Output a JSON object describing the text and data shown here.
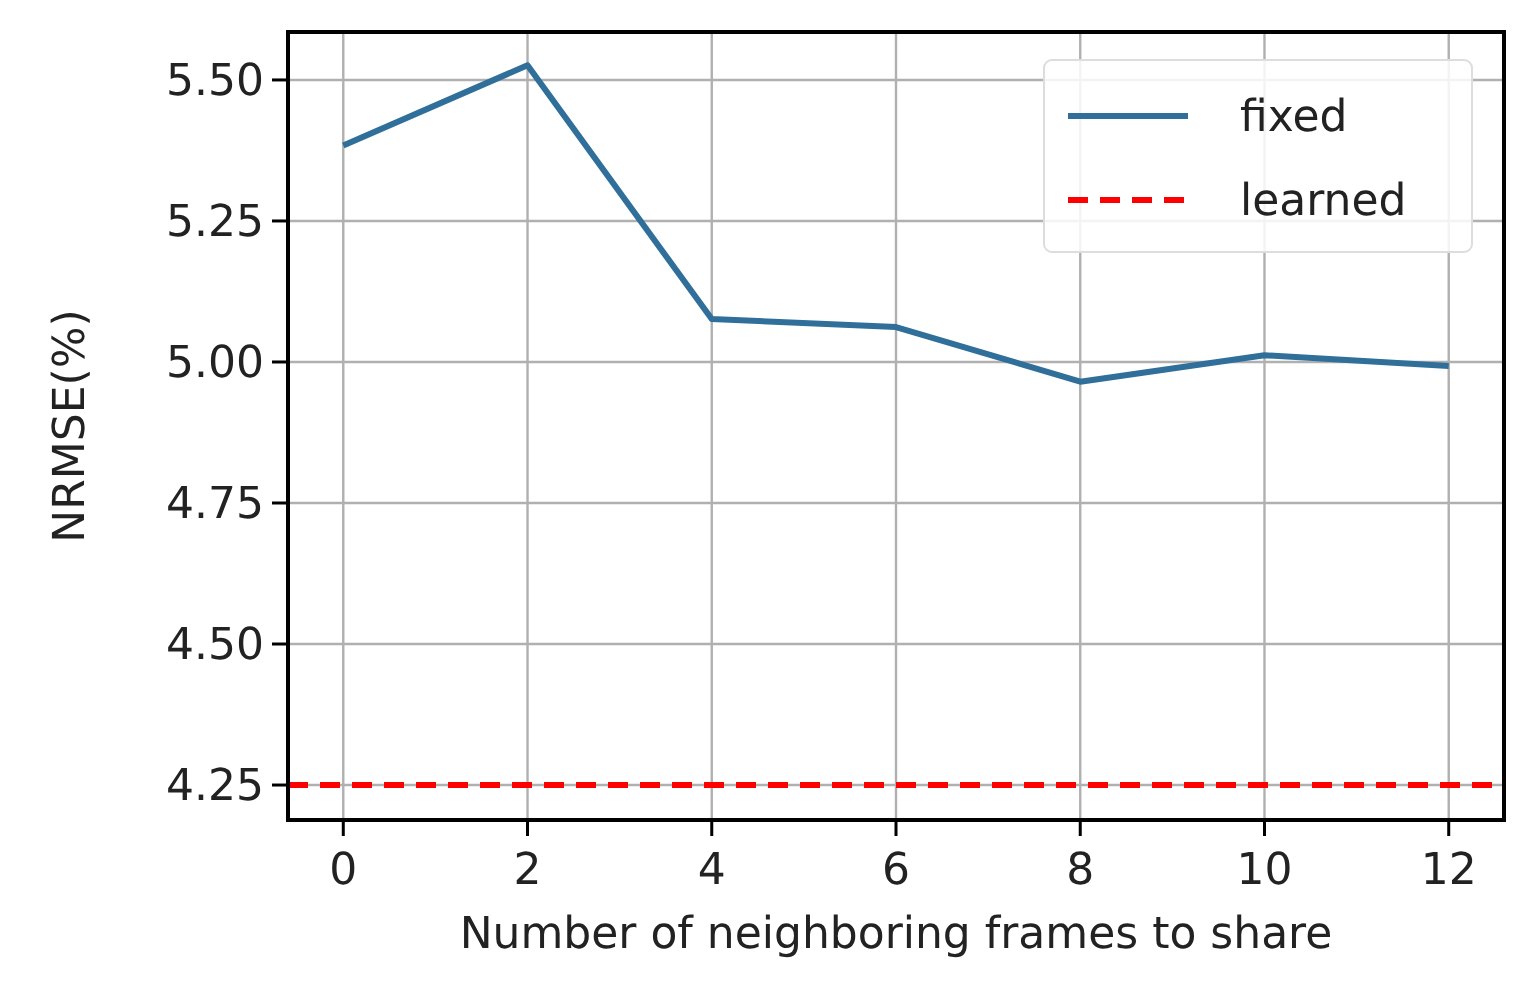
{
  "chart_data": {
    "type": "line",
    "xlabel": "Number of neighboring frames to share",
    "ylabel": "NRMSE(%)",
    "x": [
      0,
      2,
      4,
      6,
      8,
      10,
      12
    ],
    "series": [
      {
        "name": "fixed",
        "color": "#2f6f9a",
        "values": [
          5.384,
          5.526,
          5.076,
          5.062,
          4.965,
          5.012,
          4.993
        ],
        "line_style": "solid"
      },
      {
        "name": "learned",
        "color": "#ff0000",
        "x": [
          -0.6,
          12.6
        ],
        "values": [
          4.25,
          4.25
        ],
        "line_style": "dashed"
      }
    ],
    "xlim": [
      -0.6,
      12.6
    ],
    "xticks": [
      0,
      2,
      4,
      6,
      8,
      10,
      12
    ],
    "ylim": [
      4.188,
      5.585
    ],
    "yticks": [
      {
        "value": 4.25,
        "label": "4.25"
      },
      {
        "value": 4.5,
        "label": "4.50"
      },
      {
        "value": 4.75,
        "label": "4.75"
      },
      {
        "value": 5,
        "label": "5.00"
      },
      {
        "value": 5.25,
        "label": "5.25"
      },
      {
        "value": 5.5,
        "label": "5.50"
      }
    ],
    "grid": true,
    "legend": "top right",
    "marker": "none"
  }
}
